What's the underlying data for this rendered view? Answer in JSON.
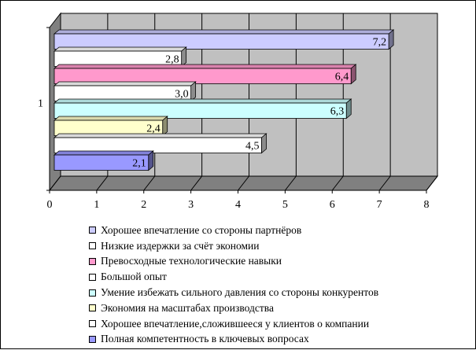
{
  "chart_data": {
    "type": "bar",
    "orientation": "horizontal",
    "style": "3d",
    "categories": [
      "1"
    ],
    "xlim": [
      0,
      8
    ],
    "x_ticks": [
      "0",
      "1",
      "2",
      "3",
      "4",
      "5",
      "6",
      "7",
      "8"
    ],
    "grid": true,
    "legend_position": "bottom",
    "series": [
      {
        "name": "Хорошее впечатление со стороны партнёров",
        "value": 7.2,
        "label": "7,2",
        "color": "#CCCCFF"
      },
      {
        "name": "Низкие издержки за счёт экономии",
        "value": 2.8,
        "label": "2,8",
        "color": "#FFFFFF"
      },
      {
        "name": "Превосходные технологические навыки",
        "value": 6.4,
        "label": "6,4",
        "color": "#FF99CC"
      },
      {
        "name": "Большой опыт",
        "value": 3.0,
        "label": "3,0",
        "color": "#FFFFFF"
      },
      {
        "name": "Умение избежать сильного давления со стороны конкурентов",
        "value": 6.3,
        "label": "6,3",
        "color": "#CCFFFF"
      },
      {
        "name": "Экономия на масштабах производства",
        "value": 2.4,
        "label": "2,4",
        "color": "#FFFFCC"
      },
      {
        "name": "Хорошее впечатление,сложившееся у клиентов о компании",
        "value": 4.5,
        "label": "4,5",
        "color": "#FFFFFF"
      },
      {
        "name": "Полная компетентность в ключевых вопросах",
        "value": 2.1,
        "label": "2,1",
        "color": "#9999FF"
      }
    ]
  },
  "colors": {
    "wall": "#C0C0C0",
    "floor": "#808080",
    "gridline": "#000000"
  }
}
